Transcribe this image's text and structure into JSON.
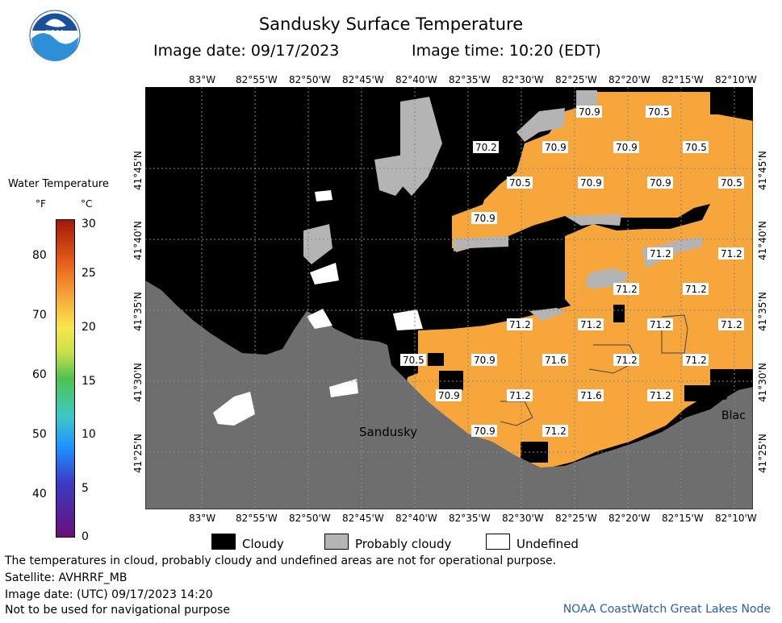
{
  "header": {
    "title": "Sandusky Surface Temperature",
    "image_date": "Image date: 09/17/2023",
    "image_time": "Image time: 10:20 (EDT)"
  },
  "logo": {
    "text": "NOAA",
    "icon": "noaa-logo"
  },
  "legend": {
    "title": "Water Temperature",
    "unit_f": "°F",
    "unit_c": "°C",
    "f_ticks": [
      "80",
      "70",
      "60",
      "50",
      "40"
    ],
    "c_ticks": [
      "30",
      "25",
      "20",
      "15",
      "10",
      "5",
      "0"
    ]
  },
  "axes": {
    "lon_labels": [
      "83°W",
      "82°55'W",
      "82°50'W",
      "82°45'W",
      "82°40'W",
      "82°35'W",
      "82°30'W",
      "82°25'W",
      "82°20'W",
      "82°15'W",
      "82°10'W"
    ],
    "lat_labels": [
      "41°45'N",
      "41°40'N",
      "41°35'N",
      "41°30'N",
      "41°25'N"
    ]
  },
  "places": {
    "sandusky": "Sandusky",
    "blac": "Blac"
  },
  "temps": {
    "t1": "70.9",
    "t2": "70.5",
    "t3": "70.2",
    "t4": "70.9",
    "t5": "70.9",
    "t6": "70.5",
    "t7": "70.5",
    "t8": "70.9",
    "t9": "70.9",
    "t10": "70.5",
    "t11": "70.9",
    "t12": "71.2",
    "t13": "71.2",
    "t14": "71.2",
    "t15": "71.2",
    "t16": "71.2",
    "t17": "71.2",
    "t18": "71.2",
    "t19": "71.2",
    "t20": "70.5",
    "t21": "70.9",
    "t22": "71.6",
    "t23": "71.2",
    "t24": "71.2",
    "t25": "70.9",
    "t26": "71.2",
    "t27": "71.6",
    "t28": "71.2",
    "t29": "70.9",
    "t30": "71.2"
  },
  "key": {
    "cloudy": "Cloudy",
    "probably_cloudy": "Probably cloudy",
    "undefined": "Undefined"
  },
  "footer": {
    "disclaimer": "The temperatures in cloud, probably cloudy and undefined areas are not for operational purpose.",
    "satellite": "Satellite: AVHRRF_MB",
    "utc": "Image date: (UTC) 09/17/2023  14:20",
    "nav": "Not to be used for navigational purpose",
    "credit": "NOAA CoastWatch Great Lakes Node"
  },
  "colors": {
    "water": "#f6a63a",
    "cloud": "#000000",
    "probably_cloudy": "#b4b4b4",
    "land": "#6e6e6e",
    "undefined": "#ffffff",
    "credit": "#2a5fa8"
  }
}
